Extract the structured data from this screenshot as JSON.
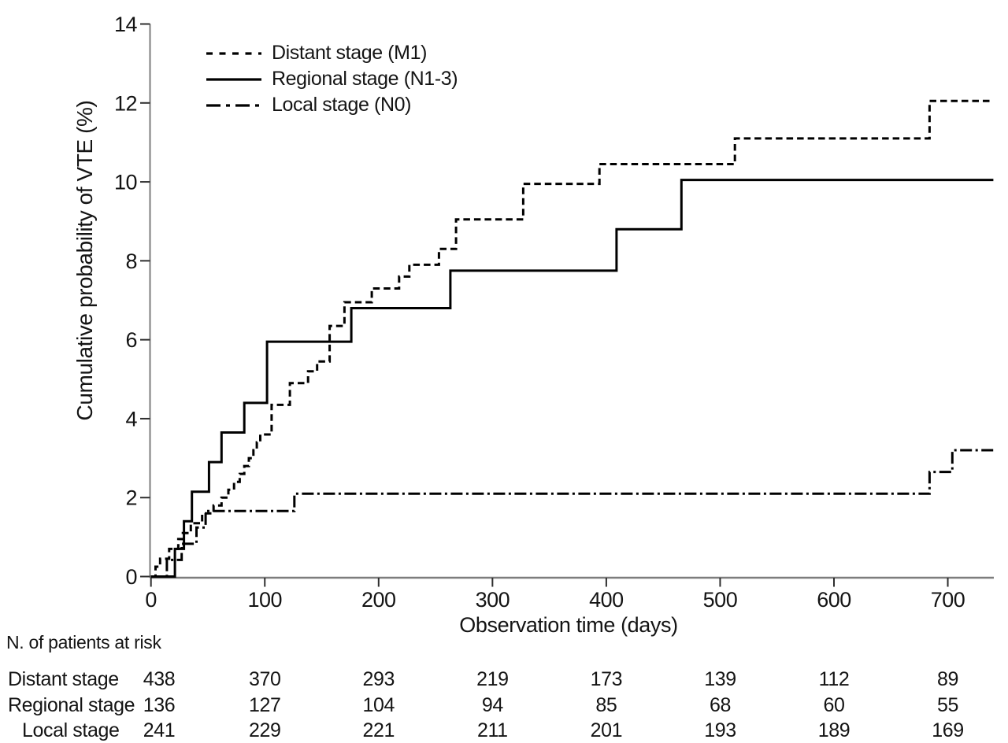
{
  "figure": {
    "background": "#ffffff",
    "text_color": "#141414",
    "curve_color": "#000000",
    "axis_line_color": "#7d7d7d",
    "tick_color": "#2e2e2e"
  },
  "chart_data": {
    "type": "line",
    "subtype": "kaplan_meier_cumulative_incidence_steps",
    "title": "",
    "xlabel": "Observation time (days)",
    "ylabel": "Cumulative probability of VTE (%)",
    "xlim": [
      0,
      740
    ],
    "ylim": [
      0,
      14
    ],
    "xticks": [
      0,
      100,
      200,
      300,
      400,
      500,
      600,
      700
    ],
    "yticks": [
      0,
      2,
      4,
      6,
      8,
      10,
      12,
      14
    ],
    "grid": false,
    "legend_position": "upper-left-inside",
    "series": [
      {
        "name": "Distant stage (M1)",
        "line_style": "dashed",
        "color": "#000000",
        "steps_day_percent": [
          [
            0,
            0
          ],
          [
            4,
            0.25
          ],
          [
            8,
            0.45
          ],
          [
            16,
            0.7
          ],
          [
            24,
            0.95
          ],
          [
            28,
            1.1
          ],
          [
            35,
            1.35
          ],
          [
            45,
            1.6
          ],
          [
            55,
            1.8
          ],
          [
            62,
            2.0
          ],
          [
            68,
            2.2
          ],
          [
            73,
            2.4
          ],
          [
            78,
            2.6
          ],
          [
            82,
            2.8
          ],
          [
            86,
            3.0
          ],
          [
            90,
            3.2
          ],
          [
            93,
            3.4
          ],
          [
            96,
            3.6
          ],
          [
            106,
            4.35
          ],
          [
            122,
            4.9
          ],
          [
            138,
            5.2
          ],
          [
            146,
            5.45
          ],
          [
            157,
            6.35
          ],
          [
            170,
            6.95
          ],
          [
            194,
            7.3
          ],
          [
            218,
            7.6
          ],
          [
            227,
            7.9
          ],
          [
            253,
            8.3
          ],
          [
            268,
            9.05
          ],
          [
            327,
            9.95
          ],
          [
            394,
            10.45
          ],
          [
            513,
            11.1
          ],
          [
            684,
            12.05
          ],
          [
            740,
            12.05
          ]
        ],
        "final_value_percent": 12.05
      },
      {
        "name": "Regional stage (N1-3)",
        "line_style": "solid",
        "color": "#000000",
        "steps_day_percent": [
          [
            0,
            0
          ],
          [
            21,
            0.7
          ],
          [
            29,
            1.4
          ],
          [
            36,
            2.15
          ],
          [
            51,
            2.9
          ],
          [
            62,
            3.65
          ],
          [
            82,
            4.4
          ],
          [
            102,
            5.95
          ],
          [
            176,
            6.8
          ],
          [
            263,
            7.75
          ],
          [
            409,
            8.8
          ],
          [
            466,
            10.05
          ],
          [
            740,
            10.05
          ]
        ],
        "final_value_percent": 10.05
      },
      {
        "name": "Local stage (N0)",
        "line_style": "dashdot",
        "color": "#000000",
        "steps_day_percent": [
          [
            0,
            0
          ],
          [
            14,
            0.42
          ],
          [
            27,
            0.83
          ],
          [
            40,
            1.24
          ],
          [
            48,
            1.66
          ],
          [
            126,
            2.1
          ],
          [
            684,
            2.65
          ],
          [
            704,
            3.2
          ],
          [
            740,
            3.2
          ]
        ],
        "final_value_percent": 3.2
      }
    ],
    "risk_table": {
      "heading": "N. of patients at risk",
      "times_days": [
        0,
        100,
        200,
        300,
        400,
        500,
        600,
        700
      ],
      "rows": [
        {
          "label": "Distant stage",
          "counts": [
            438,
            370,
            293,
            219,
            173,
            139,
            112,
            89
          ]
        },
        {
          "label": "Regional stage",
          "counts": [
            136,
            127,
            104,
            94,
            85,
            68,
            60,
            55
          ]
        },
        {
          "label": "Local stage",
          "counts": [
            241,
            229,
            221,
            211,
            201,
            193,
            189,
            169
          ]
        }
      ]
    }
  }
}
